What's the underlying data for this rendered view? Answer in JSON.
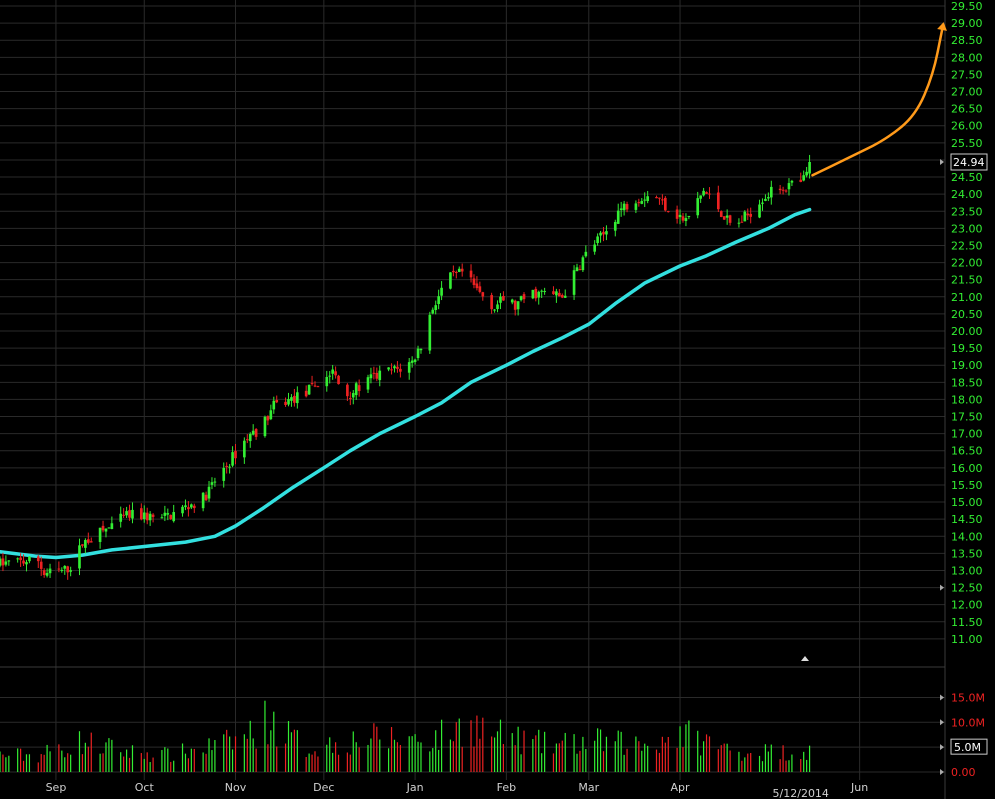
{
  "chart_data": {
    "type": "candlestick",
    "title": "",
    "xlabel": "",
    "ylabel": "",
    "ylim": [
      10.5,
      29.5
    ],
    "grid": true,
    "colors": {
      "background": "#000000",
      "up": "#33ee33",
      "down": "#ee2222",
      "moving_average": "#33e0e0",
      "projection": "#ff9a1a",
      "y_ticks": "#33ee33",
      "volume_ticks": "#ee2222",
      "grid": "#2a2a2a"
    },
    "y_ticks": [
      "11.00",
      "11.50",
      "12.00",
      "12.50",
      "13.00",
      "13.50",
      "14.00",
      "14.50",
      "15.00",
      "15.50",
      "16.00",
      "16.50",
      "17.00",
      "17.50",
      "18.00",
      "18.50",
      "19.00",
      "19.50",
      "20.00",
      "20.50",
      "21.00",
      "21.50",
      "22.00",
      "22.50",
      "23.00",
      "23.50",
      "24.00",
      "24.50",
      "25.00",
      "25.50",
      "26.00",
      "26.50",
      "27.00",
      "27.50",
      "28.00",
      "28.50",
      "29.00",
      "29.50"
    ],
    "x_ticks": [
      {
        "label": "Sep",
        "date": "2013-09-01"
      },
      {
        "label": "Oct",
        "date": "2013-10-01"
      },
      {
        "label": "Nov",
        "date": "2013-11-01"
      },
      {
        "label": "Dec",
        "date": "2013-12-01"
      },
      {
        "label": "Jan",
        "date": "2014-01-01"
      },
      {
        "label": "Feb",
        "date": "2014-02-01"
      },
      {
        "label": "Mar",
        "date": "2014-03-01"
      },
      {
        "label": "Apr",
        "date": "2014-04-01"
      },
      {
        "label": "Jun",
        "date": "2014-06-01"
      }
    ],
    "x_range": [
      "2013-08-13",
      "2014-06-30"
    ],
    "date_marker": {
      "label": "5/12/2014",
      "date": "2014-05-12"
    },
    "last_price": {
      "label": "24.94",
      "value": 24.94
    },
    "price_path": [
      [
        "2013-08-13",
        13.2
      ],
      [
        "2013-08-26",
        13.3
      ],
      [
        "2013-08-28",
        12.9
      ],
      [
        "2013-09-04",
        13.0
      ],
      [
        "2013-09-07",
        13.2
      ],
      [
        "2013-09-10",
        13.8
      ],
      [
        "2013-09-18",
        14.2
      ],
      [
        "2013-09-25",
        14.6
      ],
      [
        "2013-10-01",
        14.6
      ],
      [
        "2013-10-07",
        14.5
      ],
      [
        "2013-10-14",
        14.8
      ],
      [
        "2013-10-21",
        15.1
      ],
      [
        "2013-10-25",
        15.6
      ],
      [
        "2013-10-31",
        16.3
      ],
      [
        "2013-11-05",
        16.9
      ],
      [
        "2013-11-10",
        17.2
      ],
      [
        "2013-11-14",
        17.8
      ],
      [
        "2013-11-20",
        18.0
      ],
      [
        "2013-11-25",
        18.2
      ],
      [
        "2013-12-01",
        18.6
      ],
      [
        "2013-12-04",
        18.8
      ],
      [
        "2013-12-08",
        18.1
      ],
      [
        "2013-12-12",
        18.3
      ],
      [
        "2013-12-17",
        18.6
      ],
      [
        "2013-12-22",
        18.8
      ],
      [
        "2013-12-27",
        18.9
      ],
      [
        "2013-12-31",
        19.1
      ],
      [
        "2014-01-03",
        19.6
      ],
      [
        "2014-01-07",
        20.7
      ],
      [
        "2014-01-12",
        21.5
      ],
      [
        "2014-01-17",
        21.7
      ],
      [
        "2014-01-22",
        21.2
      ],
      [
        "2014-01-28",
        20.7
      ],
      [
        "2014-02-01",
        21.0
      ],
      [
        "2014-02-04",
        20.7
      ],
      [
        "2014-02-09",
        21.1
      ],
      [
        "2014-02-15",
        21.1
      ],
      [
        "2014-02-20",
        21.0
      ],
      [
        "2014-02-25",
        21.8
      ],
      [
        "2014-03-01",
        22.4
      ],
      [
        "2014-03-06",
        22.8
      ],
      [
        "2014-03-11",
        23.5
      ],
      [
        "2014-03-17",
        23.9
      ],
      [
        "2014-03-23",
        24.0
      ],
      [
        "2014-03-28",
        23.6
      ],
      [
        "2014-04-03",
        23.2
      ],
      [
        "2014-04-09",
        24.1
      ],
      [
        "2014-04-14",
        23.6
      ],
      [
        "2014-04-19",
        23.0
      ],
      [
        "2014-04-24",
        23.4
      ],
      [
        "2014-04-29",
        23.9
      ],
      [
        "2014-05-05",
        24.2
      ],
      [
        "2014-05-12",
        24.3
      ],
      [
        "2014-05-15",
        24.7
      ]
    ],
    "moving_average": [
      [
        "2013-08-13",
        13.55
      ],
      [
        "2013-08-25",
        13.42
      ],
      [
        "2013-09-01",
        13.38
      ],
      [
        "2013-09-10",
        13.45
      ],
      [
        "2013-09-20",
        13.6
      ],
      [
        "2013-10-01",
        13.7
      ],
      [
        "2013-10-15",
        13.83
      ],
      [
        "2013-10-25",
        14.0
      ],
      [
        "2013-11-01",
        14.3
      ],
      [
        "2013-11-10",
        14.8
      ],
      [
        "2013-11-20",
        15.4
      ],
      [
        "2013-12-01",
        16.0
      ],
      [
        "2013-12-10",
        16.5
      ],
      [
        "2013-12-20",
        17.0
      ],
      [
        "2014-01-01",
        17.5
      ],
      [
        "2014-01-10",
        17.9
      ],
      [
        "2014-01-20",
        18.5
      ],
      [
        "2014-02-01",
        19.0
      ],
      [
        "2014-02-10",
        19.4
      ],
      [
        "2014-02-20",
        19.8
      ],
      [
        "2014-03-01",
        20.2
      ],
      [
        "2014-03-10",
        20.8
      ],
      [
        "2014-03-20",
        21.4
      ],
      [
        "2014-04-01",
        21.9
      ],
      [
        "2014-04-10",
        22.2
      ],
      [
        "2014-04-20",
        22.6
      ],
      [
        "2014-05-01",
        23.0
      ],
      [
        "2014-05-10",
        23.4
      ],
      [
        "2014-05-15",
        23.55
      ]
    ],
    "projection": [
      [
        "2014-05-16",
        24.55
      ],
      [
        "2014-05-28",
        25.05
      ],
      [
        "2014-06-10",
        25.6
      ],
      [
        "2014-06-20",
        26.3
      ],
      [
        "2014-06-26",
        27.5
      ],
      [
        "2014-06-29",
        28.8
      ]
    ],
    "volume": {
      "ylim": [
        0,
        16.5
      ],
      "ticks": [
        {
          "label": "15.0M",
          "value": 15
        },
        {
          "label": "10.0M",
          "value": 10
        },
        {
          "label": "5.0M",
          "value": 5
        },
        {
          "label": "0.00",
          "value": 0
        }
      ],
      "peaks": [
        [
          "2013-08-26",
          5
        ],
        [
          "2013-09-10",
          9
        ],
        [
          "2013-09-25",
          6
        ],
        [
          "2013-10-10",
          5
        ],
        [
          "2013-10-31",
          9
        ],
        [
          "2013-11-05",
          11
        ],
        [
          "2013-11-12",
          15.5
        ],
        [
          "2013-11-25",
          7
        ],
        [
          "2013-12-15",
          10
        ],
        [
          "2014-01-08",
          10
        ],
        [
          "2014-01-20",
          14.5
        ],
        [
          "2014-01-28",
          11
        ],
        [
          "2014-02-15",
          8
        ],
        [
          "2014-03-05",
          9
        ],
        [
          "2014-03-20",
          8
        ],
        [
          "2014-04-01",
          11.5
        ],
        [
          "2014-04-20",
          6
        ],
        [
          "2014-05-10",
          6
        ]
      ]
    }
  }
}
